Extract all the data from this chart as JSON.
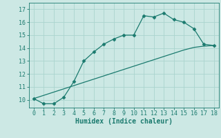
{
  "line1_x": [
    0,
    1,
    2,
    3,
    4,
    5,
    6,
    7,
    8,
    9,
    10,
    11,
    12,
    13,
    14,
    15,
    16,
    17,
    18
  ],
  "line1_y": [
    10.1,
    9.7,
    9.7,
    10.2,
    11.4,
    13.0,
    13.7,
    14.3,
    14.7,
    15.0,
    15.0,
    16.5,
    16.4,
    16.7,
    16.2,
    16.0,
    15.5,
    14.3,
    14.2
  ],
  "line2_x": [
    0,
    1,
    2,
    3,
    4,
    5,
    6,
    7,
    8,
    9,
    10,
    11,
    12,
    13,
    14,
    15,
    16,
    17,
    18
  ],
  "line2_y": [
    10.1,
    10.35,
    10.6,
    10.85,
    11.1,
    11.35,
    11.6,
    11.85,
    12.1,
    12.35,
    12.6,
    12.85,
    13.1,
    13.35,
    13.6,
    13.85,
    14.05,
    14.15,
    14.2
  ],
  "line_color": "#1a7a6e",
  "bg_color": "#cce8e4",
  "grid_color": "#aad4ce",
  "xlabel": "Humidex (Indice chaleur)",
  "xlim": [
    -0.5,
    18.5
  ],
  "ylim": [
    9.4,
    17.5
  ],
  "xticks": [
    0,
    1,
    2,
    3,
    4,
    5,
    6,
    7,
    8,
    9,
    10,
    11,
    12,
    13,
    14,
    15,
    16,
    17,
    18
  ],
  "yticks": [
    10,
    11,
    12,
    13,
    14,
    15,
    16,
    17
  ],
  "tick_fontsize": 6.0,
  "xlabel_fontsize": 7.0
}
